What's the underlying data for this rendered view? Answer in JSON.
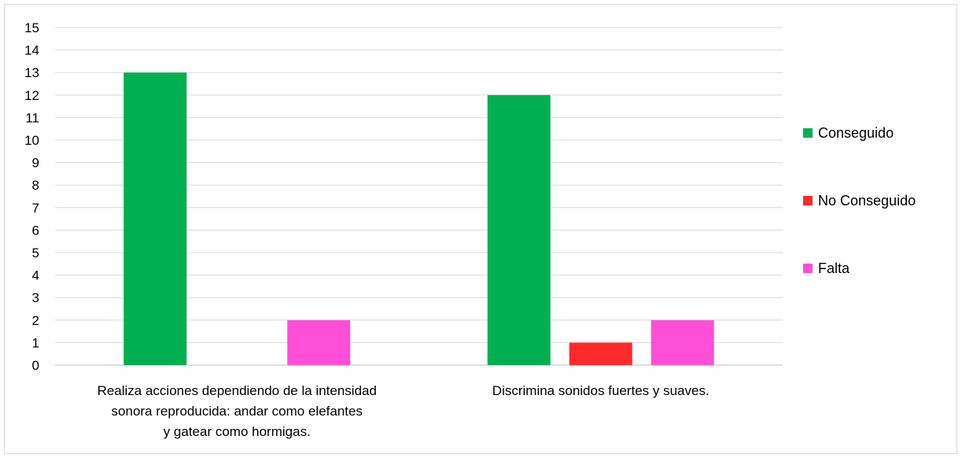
{
  "chart_data": {
    "type": "bar",
    "categories": [
      [
        "Realiza acciones dependiendo de la intensidad",
        "sonora reproducida: andar como elefantes",
        "y gatear como hormigas."
      ],
      [
        "Discrimina sonidos fuertes y suaves."
      ]
    ],
    "series": [
      {
        "name": "Conseguido",
        "values": [
          13,
          12
        ],
        "color": "#00b050"
      },
      {
        "name": "No Conseguido",
        "values": [
          0,
          1
        ],
        "color": "#ff2a2a"
      },
      {
        "name": "Falta",
        "values": [
          2,
          2
        ],
        "color": "#ff4fd8"
      }
    ],
    "ylim": [
      0,
      15
    ],
    "yticks": [
      "0",
      "1",
      "2",
      "3",
      "4",
      "5",
      "6",
      "7",
      "8",
      "9",
      "10",
      "11",
      "12",
      "13",
      "14",
      "15"
    ],
    "grid": true,
    "legend_position": "right",
    "title": "",
    "xlabel": "",
    "ylabel": ""
  }
}
